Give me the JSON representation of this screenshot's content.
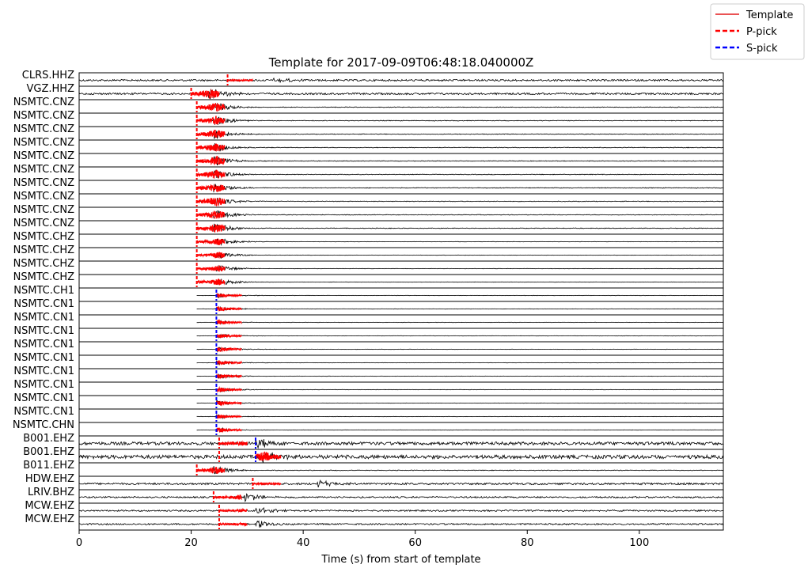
{
  "chart_data": {
    "type": "line",
    "title": "Template for 2017-09-09T06:48:18.040000Z",
    "xlabel": "Time (s) from start of template",
    "ylabel": "",
    "xlim": [
      0,
      115
    ],
    "xticks": [
      0,
      20,
      40,
      60,
      80,
      100
    ],
    "grid": false,
    "legend": {
      "placement": "upper-right-outside",
      "entries": [
        {
          "label": "Template",
          "color": "#e41a1c",
          "style": "solid"
        },
        {
          "label": "P-pick",
          "color": "#ff0000",
          "style": "dashed"
        },
        {
          "label": "S-pick",
          "color": "#0000ff",
          "style": "dashed"
        }
      ]
    },
    "colors": {
      "waveform": "#000000",
      "template": "#ff0000",
      "p_pick": "#ff0000",
      "s_pick": "#0000ff"
    },
    "channels": [
      {
        "label": "CLRS.HHZ",
        "data_start": 0,
        "data_end": 115,
        "tmpl_start": 26.5,
        "tmpl_end": 31,
        "pick_type": "P",
        "pick_time": 26.5,
        "noise": 0.15,
        "event_time": 35,
        "event_amp": 0.4
      },
      {
        "label": "VGZ.HHZ",
        "data_start": 0,
        "data_end": 115,
        "tmpl_start": 20,
        "tmpl_end": 25,
        "pick_type": "P",
        "pick_time": 20,
        "noise": 0.15,
        "event_time": 23.5,
        "event_amp": 0.9
      },
      {
        "label": "NSMTC.CNZ",
        "data_start": 21,
        "data_end": 115,
        "tmpl_start": 21,
        "tmpl_end": 26,
        "pick_type": "P",
        "pick_time": 21,
        "noise": 0.05,
        "event_time": 24.5,
        "event_amp": 0.8
      },
      {
        "label": "NSMTC.CNZ",
        "data_start": 21,
        "data_end": 115,
        "tmpl_start": 21,
        "tmpl_end": 26,
        "pick_type": "P",
        "pick_time": 21,
        "noise": 0.05,
        "event_time": 24.5,
        "event_amp": 0.8
      },
      {
        "label": "NSMTC.CNZ",
        "data_start": 21,
        "data_end": 115,
        "tmpl_start": 21,
        "tmpl_end": 26,
        "pick_type": "P",
        "pick_time": 21,
        "noise": 0.05,
        "event_time": 24.5,
        "event_amp": 0.8
      },
      {
        "label": "NSMTC.CNZ",
        "data_start": 21,
        "data_end": 115,
        "tmpl_start": 21,
        "tmpl_end": 26,
        "pick_type": "P",
        "pick_time": 21,
        "noise": 0.05,
        "event_time": 24.5,
        "event_amp": 0.8
      },
      {
        "label": "NSMTC.CNZ",
        "data_start": 21,
        "data_end": 115,
        "tmpl_start": 21,
        "tmpl_end": 26,
        "pick_type": "P",
        "pick_time": 21,
        "noise": 0.05,
        "event_time": 24.5,
        "event_amp": 0.8
      },
      {
        "label": "NSMTC.CNZ",
        "data_start": 21,
        "data_end": 115,
        "tmpl_start": 21,
        "tmpl_end": 26,
        "pick_type": "P",
        "pick_time": 21,
        "noise": 0.05,
        "event_time": 24.5,
        "event_amp": 0.8
      },
      {
        "label": "NSMTC.CNZ",
        "data_start": 21,
        "data_end": 115,
        "tmpl_start": 21,
        "tmpl_end": 26,
        "pick_type": "P",
        "pick_time": 21,
        "noise": 0.05,
        "event_time": 24.5,
        "event_amp": 0.8
      },
      {
        "label": "NSMTC.CNZ",
        "data_start": 21,
        "data_end": 115,
        "tmpl_start": 21,
        "tmpl_end": 26,
        "pick_type": "P",
        "pick_time": 21,
        "noise": 0.05,
        "event_time": 24.5,
        "event_amp": 0.8
      },
      {
        "label": "NSMTC.CNZ",
        "data_start": 21,
        "data_end": 115,
        "tmpl_start": 21,
        "tmpl_end": 26,
        "pick_type": "P",
        "pick_time": 21,
        "noise": 0.05,
        "event_time": 24.5,
        "event_amp": 0.8
      },
      {
        "label": "NSMTC.CNZ",
        "data_start": 21,
        "data_end": 115,
        "tmpl_start": 21,
        "tmpl_end": 26,
        "pick_type": "P",
        "pick_time": 21,
        "noise": 0.05,
        "event_time": 24.5,
        "event_amp": 0.8
      },
      {
        "label": "NSMTC.CHZ",
        "data_start": 21,
        "data_end": 115,
        "tmpl_start": 21,
        "tmpl_end": 26,
        "pick_type": "P",
        "pick_time": 21,
        "noise": 0.03,
        "event_time": 25,
        "event_amp": 0.6
      },
      {
        "label": "NSMTC.CHZ",
        "data_start": 21,
        "data_end": 115,
        "tmpl_start": 21,
        "tmpl_end": 26,
        "pick_type": "P",
        "pick_time": 21,
        "noise": 0.03,
        "event_time": 25,
        "event_amp": 0.6
      },
      {
        "label": "NSMTC.CHZ",
        "data_start": 21,
        "data_end": 115,
        "tmpl_start": 21,
        "tmpl_end": 26,
        "pick_type": "P",
        "pick_time": 21,
        "noise": 0.03,
        "event_time": 25,
        "event_amp": 0.6
      },
      {
        "label": "NSMTC.CHZ",
        "data_start": 21,
        "data_end": 115,
        "tmpl_start": 21,
        "tmpl_end": 26,
        "pick_type": "P",
        "pick_time": 21,
        "noise": 0.03,
        "event_time": 25,
        "event_amp": 0.6
      },
      {
        "label": "NSMTC.CH1",
        "data_start": 21,
        "data_end": 115,
        "tmpl_start": 24.5,
        "tmpl_end": 29,
        "pick_type": "S",
        "pick_time": 24.5,
        "noise": 0.03,
        "event_time": 25,
        "event_amp": 0.4
      },
      {
        "label": "NSMTC.CN1",
        "data_start": 21,
        "data_end": 115,
        "tmpl_start": 24.5,
        "tmpl_end": 29,
        "pick_type": "S",
        "pick_time": 24.5,
        "noise": 0.03,
        "event_time": 25,
        "event_amp": 0.4
      },
      {
        "label": "NSMTC.CN1",
        "data_start": 21,
        "data_end": 115,
        "tmpl_start": 24.5,
        "tmpl_end": 29,
        "pick_type": "S",
        "pick_time": 24.5,
        "noise": 0.03,
        "event_time": 25,
        "event_amp": 0.4
      },
      {
        "label": "NSMTC.CN1",
        "data_start": 21,
        "data_end": 115,
        "tmpl_start": 24.5,
        "tmpl_end": 29,
        "pick_type": "S",
        "pick_time": 24.5,
        "noise": 0.03,
        "event_time": 25,
        "event_amp": 0.4
      },
      {
        "label": "NSMTC.CN1",
        "data_start": 21,
        "data_end": 115,
        "tmpl_start": 24.5,
        "tmpl_end": 29,
        "pick_type": "S",
        "pick_time": 24.5,
        "noise": 0.03,
        "event_time": 25,
        "event_amp": 0.4
      },
      {
        "label": "NSMTC.CN1",
        "data_start": 21,
        "data_end": 115,
        "tmpl_start": 24.5,
        "tmpl_end": 29,
        "pick_type": "S",
        "pick_time": 24.5,
        "noise": 0.03,
        "event_time": 25,
        "event_amp": 0.4
      },
      {
        "label": "NSMTC.CN1",
        "data_start": 21,
        "data_end": 115,
        "tmpl_start": 24.5,
        "tmpl_end": 29,
        "pick_type": "S",
        "pick_time": 24.5,
        "noise": 0.03,
        "event_time": 25,
        "event_amp": 0.4
      },
      {
        "label": "NSMTC.CN1",
        "data_start": 21,
        "data_end": 115,
        "tmpl_start": 24.5,
        "tmpl_end": 29,
        "pick_type": "S",
        "pick_time": 24.5,
        "noise": 0.03,
        "event_time": 25,
        "event_amp": 0.4
      },
      {
        "label": "NSMTC.CN1",
        "data_start": 21,
        "data_end": 115,
        "tmpl_start": 24.5,
        "tmpl_end": 29,
        "pick_type": "S",
        "pick_time": 24.5,
        "noise": 0.03,
        "event_time": 25,
        "event_amp": 0.4
      },
      {
        "label": "NSMTC.CN1",
        "data_start": 21,
        "data_end": 115,
        "tmpl_start": 24.5,
        "tmpl_end": 29,
        "pick_type": "S",
        "pick_time": 24.5,
        "noise": 0.03,
        "event_time": 25,
        "event_amp": 0.4
      },
      {
        "label": "NSMTC.CHN",
        "data_start": 21,
        "data_end": 115,
        "tmpl_start": 24.5,
        "tmpl_end": 29,
        "pick_type": "S",
        "pick_time": 24.5,
        "noise": 0.03,
        "event_time": 25,
        "event_amp": 0.4
      },
      {
        "label": "B001.EHZ",
        "data_start": 0,
        "data_end": 115,
        "tmpl_start": 25,
        "tmpl_end": 30,
        "pick_type": "P",
        "pick_time": 25,
        "s_pick_time": 31.5,
        "noise": 0.25,
        "event_time": 32,
        "event_amp": 0.9
      },
      {
        "label": "B001.EHZ",
        "data_start": 0,
        "data_end": 115,
        "tmpl_start": 31.5,
        "tmpl_end": 36,
        "pick_type": "S",
        "pick_time": 31.5,
        "p_pick_time": 25,
        "noise": 0.3,
        "event_time": 33,
        "event_amp": 0.9
      },
      {
        "label": "B011.EHZ",
        "data_start": 21,
        "data_end": 115,
        "tmpl_start": 21,
        "tmpl_end": 26,
        "pick_type": "P",
        "pick_time": 21,
        "noise": 0.05,
        "event_time": 24.5,
        "event_amp": 0.7
      },
      {
        "label": "HDW.EHZ",
        "data_start": 0,
        "data_end": 115,
        "tmpl_start": 31,
        "tmpl_end": 36,
        "pick_type": "P",
        "pick_time": 31,
        "noise": 0.15,
        "event_time": 43,
        "event_amp": 0.6
      },
      {
        "label": "LRIV.BHZ",
        "data_start": 0,
        "data_end": 115,
        "tmpl_start": 24,
        "tmpl_end": 29,
        "pick_type": "P",
        "pick_time": 24,
        "noise": 0.12,
        "event_time": 30,
        "event_amp": 0.7
      },
      {
        "label": "MCW.EHZ",
        "data_start": 0,
        "data_end": 115,
        "tmpl_start": 25,
        "tmpl_end": 30,
        "pick_type": "P",
        "pick_time": 25,
        "noise": 0.12,
        "event_time": 32,
        "event_amp": 0.6
      },
      {
        "label": "MCW.EHZ",
        "data_start": 0,
        "data_end": 115,
        "tmpl_start": 25,
        "tmpl_end": 30,
        "pick_type": "P",
        "pick_time": 25,
        "noise": 0.12,
        "event_time": 32,
        "event_amp": 0.6
      }
    ]
  }
}
